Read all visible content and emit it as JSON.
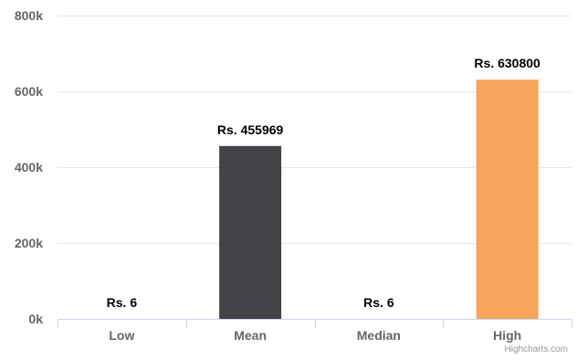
{
  "chart_data": {
    "type": "bar",
    "categories": [
      "Low",
      "Mean",
      "Median",
      "High"
    ],
    "values": [
      6,
      455969,
      6,
      630800
    ],
    "data_labels": [
      "Rs. 6",
      "Rs. 455969",
      "Rs. 6",
      "Rs. 630800"
    ],
    "y_tick_labels": [
      "0k",
      "200k",
      "400k",
      "600k",
      "800k"
    ],
    "y_tick_values": [
      0,
      200000,
      400000,
      600000,
      800000
    ],
    "ylim": [
      0,
      800000
    ],
    "bar_colors": [
      "#434348",
      "#434348",
      "#434348",
      "#f7a35c"
    ],
    "grid": true,
    "legend": "none"
  },
  "credits": {
    "text": "Highcharts.com"
  }
}
